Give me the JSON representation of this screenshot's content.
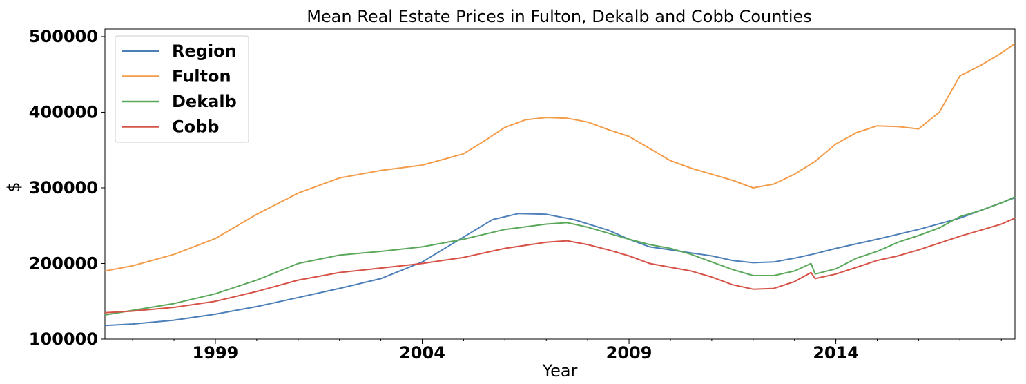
{
  "chart_data": {
    "type": "line",
    "title": "Mean Real Estate Prices in Fulton, Dekalb and Cobb Counties",
    "xlabel": "Year",
    "ylabel": "$",
    "xlim": [
      1996.33,
      2018.33
    ],
    "ylim": [
      100000,
      510000
    ],
    "xticks": [
      "1999",
      "2004",
      "2009",
      "2014"
    ],
    "yticks": [
      "100000",
      "200000",
      "300000",
      "400000",
      "500000"
    ],
    "legend_position": "upper-left",
    "grid": false,
    "series": [
      {
        "name": "Region",
        "color": "#4c7fb8",
        "x": [
          1996.33,
          1997.0,
          1998.0,
          1999.0,
          2000.0,
          2001.0,
          2002.0,
          2003.0,
          2004.0,
          2005.0,
          2005.7,
          2006.33,
          2007.0,
          2007.67,
          2008.5,
          2009.0,
          2009.5,
          2010.0,
          2010.5,
          2011.0,
          2011.5,
          2012.0,
          2012.5,
          2013.0,
          2013.5,
          2014.0,
          2015.0,
          2016.0,
          2017.0,
          2018.33
        ],
        "y": [
          118000,
          120000,
          125000,
          133000,
          143000,
          155000,
          167000,
          180000,
          202000,
          235000,
          258000,
          266000,
          265000,
          258000,
          244000,
          232000,
          222000,
          218000,
          214000,
          210000,
          204000,
          201000,
          202000,
          207000,
          213000,
          220000,
          232000,
          245000,
          260000,
          287000
        ]
      },
      {
        "name": "Fulton",
        "color": "#f39c4a",
        "x": [
          1996.33,
          1997.0,
          1998.0,
          1999.0,
          2000.0,
          2001.0,
          2002.0,
          2003.0,
          2004.0,
          2005.0,
          2005.5,
          2006.0,
          2006.5,
          2007.0,
          2007.5,
          2008.0,
          2008.5,
          2009.0,
          2009.5,
          2010.0,
          2010.5,
          2011.0,
          2011.5,
          2012.0,
          2012.5,
          2013.0,
          2013.5,
          2014.0,
          2014.5,
          2015.0,
          2015.5,
          2016.0,
          2016.5,
          2017.0,
          2017.5,
          2018.0,
          2018.33
        ],
        "y": [
          190000,
          197000,
          212000,
          233000,
          265000,
          293000,
          313000,
          323000,
          330000,
          345000,
          362000,
          380000,
          390000,
          393000,
          392000,
          387000,
          377000,
          368000,
          352000,
          336000,
          326000,
          318000,
          310000,
          300000,
          305000,
          318000,
          335000,
          358000,
          373000,
          382000,
          381000,
          378000,
          400000,
          448000,
          462000,
          478000,
          491000
        ]
      },
      {
        "name": "Dekalb",
        "color": "#5aa85a",
        "x": [
          1996.33,
          1997.0,
          1998.0,
          1999.0,
          2000.0,
          2001.0,
          2002.0,
          2003.0,
          2004.0,
          2005.0,
          2006.0,
          2007.0,
          2007.5,
          2008.0,
          2008.5,
          2009.0,
          2009.5,
          2010.0,
          2010.5,
          2011.0,
          2011.5,
          2012.0,
          2012.5,
          2013.0,
          2013.4,
          2013.5,
          2014.0,
          2014.5,
          2015.0,
          2015.5,
          2016.0,
          2016.5,
          2017.0,
          2017.5,
          2018.0,
          2018.33
        ],
        "y": [
          132000,
          138000,
          147000,
          160000,
          178000,
          200000,
          211000,
          216000,
          222000,
          232000,
          245000,
          252000,
          254000,
          248000,
          240000,
          232000,
          225000,
          220000,
          212000,
          202000,
          192000,
          184000,
          184000,
          190000,
          200000,
          186000,
          193000,
          207000,
          216000,
          228000,
          237000,
          247000,
          262000,
          270000,
          280000,
          288000
        ]
      },
      {
        "name": "Cobb",
        "color": "#d65246",
        "x": [
          1996.33,
          1997.0,
          1998.0,
          1999.0,
          2000.0,
          2001.0,
          2002.0,
          2003.0,
          2004.0,
          2005.0,
          2006.0,
          2007.0,
          2007.5,
          2008.0,
          2008.5,
          2009.0,
          2009.5,
          2010.0,
          2010.5,
          2011.0,
          2011.5,
          2012.0,
          2012.5,
          2013.0,
          2013.4,
          2013.5,
          2014.0,
          2014.5,
          2015.0,
          2015.5,
          2016.0,
          2016.5,
          2017.0,
          2017.5,
          2018.0,
          2018.33
        ],
        "y": [
          135000,
          137000,
          142000,
          150000,
          163000,
          178000,
          188000,
          194000,
          200000,
          208000,
          220000,
          228000,
          230000,
          225000,
          218000,
          210000,
          200000,
          195000,
          190000,
          182000,
          172000,
          166000,
          167000,
          176000,
          188000,
          180000,
          186000,
          195000,
          204000,
          210000,
          218000,
          227000,
          236000,
          244000,
          252000,
          260000
        ]
      }
    ]
  }
}
